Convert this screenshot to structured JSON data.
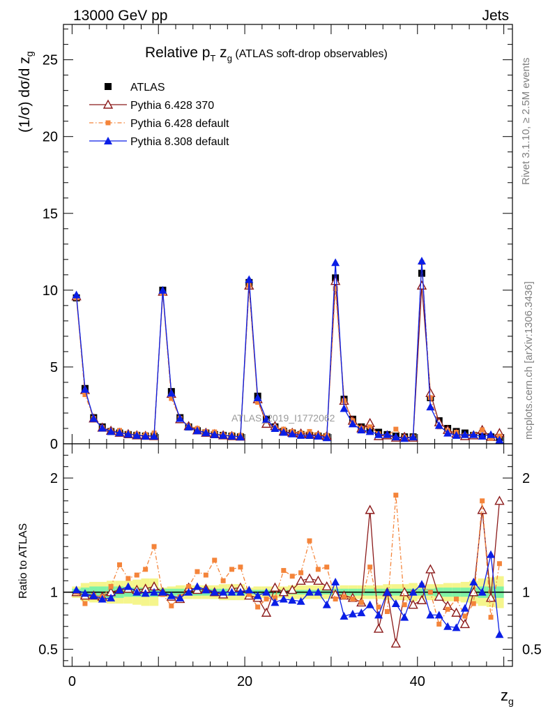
{
  "header": {
    "left": "13000 GeV pp",
    "right": "Jets"
  },
  "side_labels": {
    "rivet": "Rivet 3.1.10, ≥ 2.5M events",
    "source": "mcplots.cern.ch [arXiv:1306.3436]"
  },
  "title": {
    "main": "Relative p",
    "sub1": "T",
    "mid": " z",
    "sub2": "g",
    "tail": " (ATLAS soft-drop observables)"
  },
  "axes": {
    "ylabel_main": "(1/σ) dσ/d z",
    "ylabel_sub": "g",
    "ylabel_ratio": "Ratio to ATLAS",
    "xlabel": "z",
    "xlabel_sub": "g"
  },
  "watermark": "ATLAS_2019_I1772062",
  "colors": {
    "atlas": "#000000",
    "p6_370": "#8b1a1a",
    "p6_default": "#f4843a",
    "p8_default": "#0a1ee6",
    "band_inner": "#7ff2a6",
    "band_outer": "#f5f58c",
    "ratio_line": "#138a13"
  },
  "chart_data": [
    {
      "type": "scatter",
      "panel": "main",
      "title": "Relative pT zg (ATLAS soft-drop observables)",
      "xlabel": "zg",
      "ylabel": "(1/σ) dσ/d zg",
      "xlim": [
        -1,
        51
      ],
      "ylim": [
        0,
        27.3
      ],
      "xticks": [
        0,
        20,
        40
      ],
      "yticks": [
        0,
        5,
        10,
        15,
        20,
        25
      ],
      "legend_position": "top-left",
      "x": [
        0.5,
        1.5,
        2.5,
        3.5,
        4.5,
        5.5,
        6.5,
        7.5,
        8.5,
        9.5,
        10.5,
        11.5,
        12.5,
        13.5,
        14.5,
        15.5,
        16.5,
        17.5,
        18.5,
        19.5,
        20.5,
        21.5,
        22.5,
        23.5,
        24.5,
        25.5,
        26.5,
        27.5,
        28.5,
        29.5,
        30.5,
        31.5,
        32.5,
        33.5,
        34.5,
        35.5,
        36.5,
        37.5,
        38.5,
        39.5,
        40.5,
        41.5,
        42.5,
        43.5,
        44.5,
        45.5,
        46.5,
        47.5,
        48.5,
        49.5
      ],
      "series": [
        {
          "name": "ATLAS",
          "marker": "square",
          "values": [
            9.5,
            3.6,
            1.7,
            1.1,
            0.8,
            0.7,
            0.6,
            0.55,
            0.5,
            0.5,
            10.0,
            3.4,
            1.7,
            1.1,
            0.85,
            0.7,
            0.6,
            0.55,
            0.5,
            0.45,
            10.5,
            3.1,
            1.6,
            1.1,
            0.8,
            0.7,
            0.6,
            0.55,
            0.5,
            0.45,
            10.8,
            2.9,
            1.6,
            1.1,
            0.9,
            0.75,
            0.6,
            0.5,
            0.45,
            0.45,
            11.1,
            3.0,
            1.5,
            1.0,
            0.8,
            0.7,
            0.55,
            0.5,
            0.45,
            0.4
          ]
        },
        {
          "name": "Pythia 6.428 370",
          "marker": "triangle-open",
          "values": [
            9.6,
            3.5,
            1.65,
            1.05,
            0.85,
            0.72,
            0.63,
            0.55,
            0.52,
            0.5,
            9.9,
            3.25,
            1.6,
            1.15,
            0.87,
            0.72,
            0.63,
            0.55,
            0.5,
            0.47,
            10.3,
            2.9,
            1.3,
            1.15,
            0.8,
            0.72,
            0.67,
            0.62,
            0.55,
            0.5,
            10.6,
            2.8,
            1.5,
            1.0,
            1.35,
            0.5,
            0.55,
            0.4,
            0.45,
            0.4,
            10.3,
            3.3,
            1.4,
            0.9,
            0.65,
            0.5,
            0.55,
            0.9,
            0.45,
            0.7
          ]
        },
        {
          "name": "Pythia 6.428 default",
          "marker": "square-small",
          "values": [
            9.5,
            3.2,
            1.65,
            1.05,
            0.85,
            0.87,
            0.67,
            0.63,
            0.6,
            0.7,
            9.8,
            2.95,
            1.65,
            1.15,
            1.0,
            0.8,
            0.77,
            0.6,
            0.6,
            0.55,
            10.3,
            2.7,
            1.5,
            1.05,
            0.95,
            0.8,
            0.7,
            0.8,
            0.6,
            0.55,
            10.1,
            2.8,
            1.5,
            1.0,
            1.1,
            0.65,
            0.5,
            0.95,
            0.4,
            0.45,
            11.8,
            3.0,
            1.1,
            0.85,
            0.75,
            0.55,
            0.6,
            0.9,
            0.35,
            0.5
          ]
        },
        {
          "name": "Pythia 8.308 default",
          "marker": "triangle-filled",
          "values": [
            9.7,
            3.55,
            1.65,
            1.03,
            0.8,
            0.72,
            0.63,
            0.55,
            0.5,
            0.5,
            10.0,
            3.3,
            1.65,
            1.1,
            0.85,
            0.72,
            0.6,
            0.55,
            0.5,
            0.45,
            10.7,
            3.0,
            1.6,
            1.0,
            0.75,
            0.65,
            0.55,
            0.55,
            0.5,
            0.4,
            11.8,
            2.3,
            1.3,
            0.9,
            0.8,
            0.6,
            0.6,
            0.45,
            0.35,
            0.45,
            11.9,
            2.4,
            1.2,
            0.7,
            0.55,
            0.6,
            0.6,
            0.5,
            0.6,
            0.25
          ]
        }
      ]
    },
    {
      "type": "scatter",
      "panel": "ratio",
      "ylabel": "Ratio to ATLAS",
      "xlabel": "zg",
      "xlim": [
        -1,
        51
      ],
      "ylim": [
        0.35,
        2.3
      ],
      "yticks": [
        0.5,
        1,
        2
      ],
      "band_inner_halfwidth": [
        0.03,
        0.04,
        0.05,
        0.05,
        0.05,
        0.05,
        0.04,
        0.04,
        0.04,
        0.04,
        0.03,
        0.03,
        0.03,
        0.03,
        0.03,
        0.03,
        0.03,
        0.03,
        0.03,
        0.03,
        0.02,
        0.02,
        0.02,
        0.02,
        0.02,
        0.02,
        0.02,
        0.02,
        0.02,
        0.02,
        0.03,
        0.03,
        0.03,
        0.03,
        0.03,
        0.03,
        0.03,
        0.03,
        0.03,
        0.03,
        0.03,
        0.03,
        0.04,
        0.04,
        0.04,
        0.04,
        0.04,
        0.05,
        0.05,
        0.05
      ],
      "band_outer_halfwidth": [
        0.05,
        0.08,
        0.09,
        0.09,
        0.1,
        0.1,
        0.1,
        0.11,
        0.12,
        0.12,
        0.04,
        0.05,
        0.06,
        0.06,
        0.06,
        0.06,
        0.06,
        0.07,
        0.07,
        0.07,
        0.04,
        0.05,
        0.05,
        0.05,
        0.05,
        0.06,
        0.06,
        0.06,
        0.06,
        0.06,
        0.05,
        0.06,
        0.06,
        0.06,
        0.06,
        0.06,
        0.07,
        0.07,
        0.07,
        0.08,
        0.06,
        0.07,
        0.07,
        0.08,
        0.08,
        0.09,
        0.1,
        0.12,
        0.13,
        0.14
      ],
      "series": [
        {
          "name": "Pythia 6.428 370",
          "values": [
            1.0,
            0.97,
            0.97,
            0.96,
            1.0,
            1.02,
            1.03,
            1.02,
            1.03,
            1.05,
            1.0,
            0.96,
            0.94,
            1.04,
            1.02,
            1.03,
            1.0,
            0.98,
            1.03,
            1.04,
            0.97,
            0.95,
            0.82,
            1.04,
            1.0,
            1.02,
            1.1,
            1.12,
            1.1,
            1.05,
            0.98,
            0.97,
            0.95,
            0.91,
            1.72,
            0.68,
            1.0,
            0.55,
            1.0,
            0.89,
            0.93,
            1.2,
            0.96,
            0.88,
            0.82,
            0.72,
            1.0,
            1.72,
            0.95,
            1.8
          ]
        },
        {
          "name": "Pythia 6.428 default",
          "values": [
            1.0,
            0.9,
            0.97,
            0.96,
            1.05,
            1.24,
            1.12,
            1.15,
            1.2,
            1.4,
            0.98,
            0.88,
            0.96,
            1.05,
            1.18,
            1.15,
            1.28,
            1.1,
            1.2,
            1.22,
            0.98,
            0.87,
            0.94,
            0.95,
            1.19,
            1.14,
            1.17,
            1.45,
            1.2,
            1.22,
            0.94,
            0.96,
            0.94,
            0.91,
            1.22,
            0.87,
            0.83,
            1.85,
            0.89,
            1.0,
            1.06,
            1.0,
            0.72,
            0.85,
            0.94,
            0.79,
            0.9,
            1.8,
            0.78,
            1.25
          ]
        },
        {
          "name": "Pythia 8.308 default",
          "values": [
            1.02,
            0.99,
            0.97,
            0.94,
            0.95,
            1.02,
            1.05,
            1.0,
            0.99,
            1.0,
            1.0,
            0.97,
            0.95,
            1.0,
            1.05,
            1.02,
            1.0,
            1.0,
            1.0,
            1.0,
            1.02,
            0.97,
            1.0,
            0.91,
            0.94,
            0.93,
            0.92,
            1.0,
            1.0,
            0.89,
            1.09,
            0.79,
            0.81,
            0.82,
            0.89,
            0.8,
            1.0,
            0.9,
            0.78,
            1.0,
            1.07,
            0.8,
            0.8,
            0.7,
            0.69,
            0.86,
            1.09,
            1.0,
            1.33,
            0.63
          ]
        }
      ]
    }
  ]
}
